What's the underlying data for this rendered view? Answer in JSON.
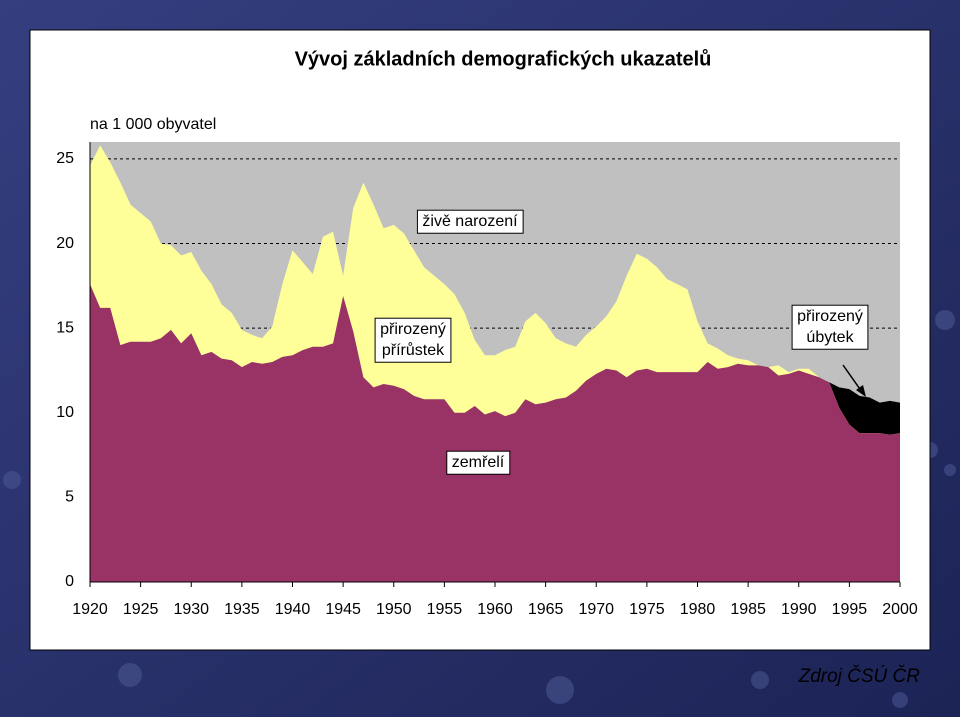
{
  "chart_data": {
    "type": "area",
    "title": "Vývoj základních demografických ukazatelů",
    "y_label": "na 1 000 obyvatel",
    "source": "Zdroj ČSÚ ČR",
    "x": [
      1920,
      1921,
      1922,
      1923,
      1924,
      1925,
      1926,
      1927,
      1928,
      1929,
      1930,
      1931,
      1932,
      1933,
      1934,
      1935,
      1936,
      1937,
      1938,
      1939,
      1940,
      1941,
      1942,
      1943,
      1944,
      1945,
      1946,
      1947,
      1948,
      1949,
      1950,
      1951,
      1952,
      1953,
      1954,
      1955,
      1956,
      1957,
      1958,
      1959,
      1960,
      1961,
      1962,
      1963,
      1964,
      1965,
      1966,
      1967,
      1968,
      1969,
      1970,
      1971,
      1972,
      1973,
      1974,
      1975,
      1976,
      1977,
      1978,
      1979,
      1980,
      1981,
      1982,
      1983,
      1984,
      1985,
      1986,
      1987,
      1988,
      1989,
      1990,
      1991,
      1992,
      1993,
      1994,
      1995,
      1996,
      1997,
      1998,
      1999,
      2000
    ],
    "series": [
      {
        "name": "živě narození",
        "color": "#ffff99",
        "values": [
          24.6,
          25.8,
          24.8,
          23.6,
          22.3,
          21.8,
          21.3,
          20.0,
          19.9,
          19.3,
          19.5,
          18.4,
          17.6,
          16.4,
          15.9,
          14.9,
          14.6,
          14.4,
          15.1,
          17.6,
          19.6,
          18.9,
          18.2,
          20.4,
          20.7,
          18.1,
          22.1,
          23.6,
          22.3,
          20.9,
          21.1,
          20.6,
          19.6,
          18.6,
          18.1,
          17.6,
          17.0,
          15.9,
          14.3,
          13.4,
          13.4,
          13.7,
          13.9,
          15.4,
          15.9,
          15.3,
          14.4,
          14.1,
          13.9,
          14.6,
          15.1,
          15.7,
          16.6,
          18.1,
          19.4,
          19.1,
          18.6,
          17.9,
          17.6,
          17.3,
          15.4,
          14.1,
          13.8,
          13.4,
          13.2,
          13.1,
          12.8,
          12.7,
          12.8,
          12.4,
          12.6,
          12.6,
          12.1,
          11.8,
          10.3,
          9.3,
          8.8,
          8.8,
          8.8,
          8.7,
          8.8
        ]
      },
      {
        "name": "zemřelí",
        "color": "#993366",
        "values": [
          17.6,
          16.2,
          16.2,
          14.0,
          14.2,
          14.2,
          14.2,
          14.4,
          14.9,
          14.1,
          14.7,
          13.4,
          13.6,
          13.2,
          13.1,
          12.7,
          13.0,
          12.9,
          13.0,
          13.3,
          13.4,
          13.7,
          13.9,
          13.9,
          14.1,
          16.9,
          14.8,
          12.1,
          11.5,
          11.7,
          11.6,
          11.4,
          11.0,
          10.8,
          10.8,
          10.8,
          10.0,
          10.0,
          10.4,
          9.9,
          10.1,
          9.8,
          10.0,
          10.8,
          10.5,
          10.6,
          10.8,
          10.9,
          11.3,
          11.9,
          12.3,
          12.6,
          12.5,
          12.1,
          12.5,
          12.6,
          12.4,
          12.4,
          12.4,
          12.4,
          12.4,
          13.0,
          12.6,
          12.7,
          12.9,
          12.8,
          12.8,
          12.7,
          12.2,
          12.3,
          12.5,
          12.3,
          12.1,
          11.8,
          11.5,
          11.4,
          11.0,
          10.9,
          10.6,
          10.7,
          10.6
        ]
      }
    ],
    "increase": {
      "lines": [
        "přirozený",
        "přírůstek"
      ]
    },
    "decrease": {
      "lines": [
        "přirozený",
        "úbytek"
      ],
      "color": "#000000"
    },
    "background_color": "#c0c0c0",
    "xlim": [
      1920,
      2000
    ],
    "xticks": [
      1920,
      1925,
      1930,
      1935,
      1940,
      1945,
      1950,
      1955,
      1960,
      1965,
      1970,
      1975,
      1980,
      1985,
      1990,
      1995,
      2000
    ],
    "ylim": [
      0,
      26
    ],
    "yticks": [
      0,
      5,
      10,
      15,
      20,
      25
    ],
    "grid": true
  }
}
